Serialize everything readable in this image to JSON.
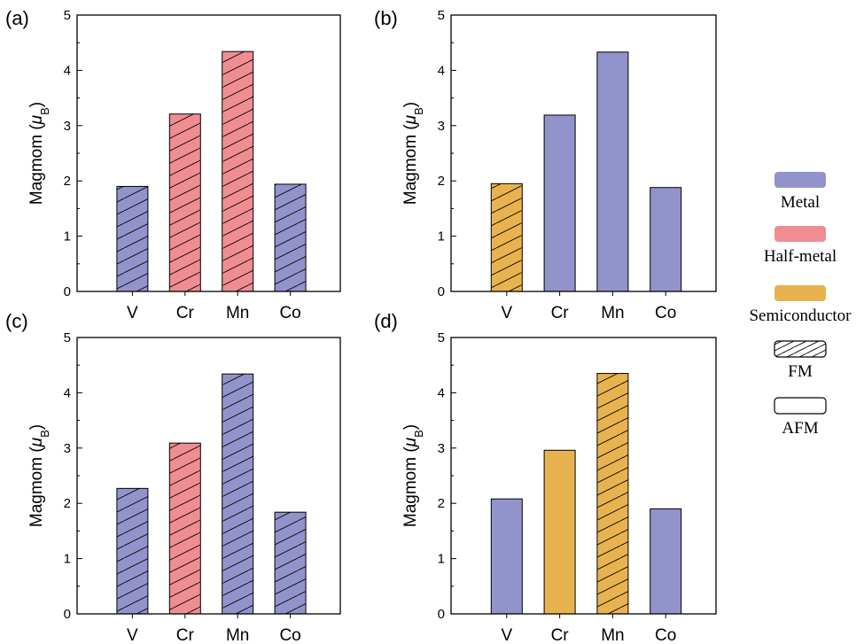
{
  "colors": {
    "metal": "#9393cc",
    "half_metal": "#ef8d92",
    "semiconductor": "#e8b34f",
    "outline": "#000000"
  },
  "legend": {
    "items": [
      {
        "label": "Metal",
        "kind": "color",
        "color": "#9393cc"
      },
      {
        "label": "Half-metal",
        "kind": "color",
        "color": "#ef8d92"
      },
      {
        "label": "Semiconductor",
        "kind": "color",
        "color": "#e8b34f"
      },
      {
        "label": "FM",
        "kind": "pattern",
        "pattern": "hatch"
      },
      {
        "label": "AFM",
        "kind": "pattern",
        "pattern": "plain"
      }
    ]
  },
  "chart_data": [
    {
      "type": "bar",
      "panel": "(a)",
      "categories": [
        "V",
        "Cr",
        "Mn",
        "Co"
      ],
      "values": [
        1.9,
        3.21,
        4.34,
        1.94
      ],
      "classes": [
        "Metal",
        "Half-metal",
        "Half-metal",
        "Metal"
      ],
      "order": [
        "FM",
        "FM",
        "FM",
        "FM"
      ],
      "ylabel": "Magmom (μB)",
      "ylim": [
        0,
        5
      ],
      "yticks": [
        "0",
        "1",
        "2",
        "3",
        "4",
        "5"
      ]
    },
    {
      "type": "bar",
      "panel": "(b)",
      "categories": [
        "V",
        "Cr",
        "Mn",
        "Co"
      ],
      "values": [
        1.95,
        3.19,
        4.33,
        1.88
      ],
      "classes": [
        "Semiconductor",
        "Metal",
        "Metal",
        "Metal"
      ],
      "order": [
        "FM",
        "AFM",
        "AFM",
        "AFM"
      ],
      "ylabel": "Magmom (μB)",
      "ylim": [
        0,
        5
      ],
      "yticks": [
        "0",
        "1",
        "2",
        "3",
        "4",
        "5"
      ]
    },
    {
      "type": "bar",
      "panel": "(c)",
      "categories": [
        "V",
        "Cr",
        "Mn",
        "Co"
      ],
      "values": [
        2.27,
        3.09,
        4.34,
        1.84
      ],
      "classes": [
        "Metal",
        "Half-metal",
        "Metal",
        "Metal"
      ],
      "order": [
        "FM",
        "FM",
        "FM",
        "FM"
      ],
      "ylabel": "Magmom (μB)",
      "ylim": [
        0,
        5
      ],
      "yticks": [
        "0",
        "1",
        "2",
        "3",
        "4",
        "5"
      ]
    },
    {
      "type": "bar",
      "panel": "(d)",
      "categories": [
        "V",
        "Cr",
        "Mn",
        "Co"
      ],
      "values": [
        2.08,
        2.96,
        4.35,
        1.9
      ],
      "classes": [
        "Metal",
        "Semiconductor",
        "Semiconductor",
        "Metal"
      ],
      "order": [
        "AFM",
        "AFM",
        "FM",
        "AFM"
      ],
      "ylabel": "Magmom (μB)",
      "ylim": [
        0,
        5
      ],
      "yticks": [
        "0",
        "1",
        "2",
        "3",
        "4",
        "5"
      ]
    }
  ]
}
